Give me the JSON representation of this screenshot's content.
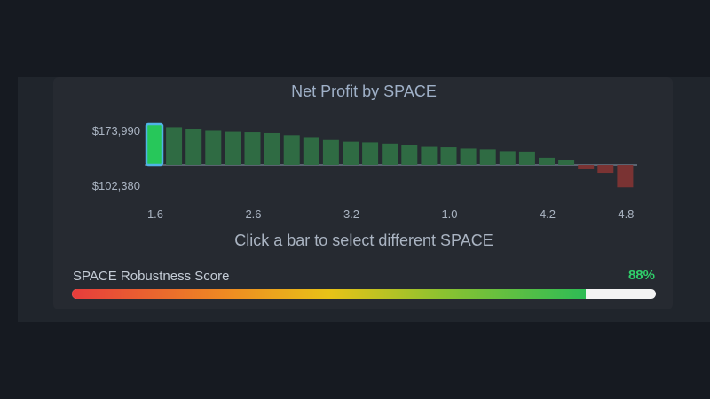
{
  "chart_data": {
    "type": "bar",
    "title": "Net Profit by SPACE",
    "y_axis_labels": [
      "$173,990",
      "$102,380"
    ],
    "x_tick_labels": [
      {
        "index": 0,
        "label": "1.6"
      },
      {
        "index": 5,
        "label": "2.6"
      },
      {
        "index": 10,
        "label": "3.2"
      },
      {
        "index": 15,
        "label": "1.0"
      },
      {
        "index": 20,
        "label": "4.2"
      },
      {
        "index": 24,
        "label": "4.8"
      }
    ],
    "values": [
      173990,
      171800,
      170500,
      169200,
      168500,
      168200,
      167600,
      166100,
      164100,
      162600,
      161400,
      160900,
      160000,
      158900,
      157600,
      157300,
      156400,
      155800,
      154500,
      154200,
      149700,
      148300,
      141300,
      138700,
      128300
    ],
    "baseline": 144500,
    "ylim": [
      102380,
      173990
    ],
    "selected_index": 0,
    "colors": {
      "positive": "#2f6b43",
      "negative": "#7a3333",
      "selected": "#27c75a",
      "selected_outline": "#4fb4e6",
      "baseline": "#6c7686"
    }
  },
  "hint": "Click a bar to select different SPACE",
  "robustness": {
    "label": "SPACE Robustness Score",
    "value_text": "88%",
    "value": 0.88
  }
}
